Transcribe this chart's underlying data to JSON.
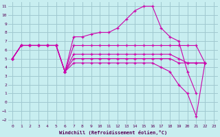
{
  "xlabel": "Windchill (Refroidissement éolien,°C)",
  "background_color": "#c8eef0",
  "grid_color": "#a0c8d0",
  "line_color": "#cc00aa",
  "xlim": [
    -0.5,
    23.5
  ],
  "ylim": [
    -2.5,
    11.5
  ],
  "xticks": [
    0,
    1,
    2,
    3,
    4,
    5,
    6,
    7,
    8,
    9,
    10,
    11,
    12,
    13,
    14,
    15,
    16,
    17,
    18,
    19,
    20,
    21,
    22,
    23
  ],
  "yticks": [
    -2,
    -1,
    0,
    1,
    2,
    3,
    4,
    5,
    6,
    7,
    8,
    9,
    10,
    11
  ],
  "s1_x": [
    0,
    1,
    2,
    3,
    4,
    5,
    6,
    7,
    8,
    9,
    10,
    11,
    12,
    13,
    14,
    15,
    16,
    17,
    18,
    19,
    20,
    21
  ],
  "s1_y": [
    5.0,
    6.5,
    6.5,
    6.5,
    6.5,
    6.5,
    3.5,
    7.5,
    7.5,
    7.8,
    8.0,
    8.0,
    8.5,
    9.5,
    10.5,
    11.0,
    11.0,
    8.5,
    7.5,
    7.0,
    3.5,
    1.0
  ],
  "s2_x": [
    0,
    1,
    2,
    3,
    4,
    5,
    6,
    7,
    8,
    9,
    10,
    11,
    12,
    13,
    14,
    15,
    16,
    17,
    18,
    19,
    20,
    21,
    22
  ],
  "s2_y": [
    5.0,
    6.5,
    6.5,
    6.5,
    6.5,
    6.5,
    3.5,
    6.5,
    6.5,
    6.5,
    6.5,
    6.5,
    6.5,
    6.5,
    6.5,
    6.5,
    6.5,
    6.5,
    6.5,
    6.5,
    6.5,
    6.5,
    4.5
  ],
  "s3_x": [
    0,
    1,
    2,
    3,
    4,
    5,
    6,
    7,
    8,
    9,
    10,
    11,
    12,
    13,
    14,
    15,
    16,
    17,
    18,
    19,
    20,
    21,
    22
  ],
  "s3_y": [
    5.0,
    6.5,
    6.5,
    6.5,
    6.5,
    6.5,
    3.5,
    5.5,
    5.5,
    5.5,
    5.5,
    5.5,
    5.5,
    5.5,
    5.5,
    5.5,
    5.5,
    5.5,
    5.5,
    5.0,
    4.5,
    4.5,
    4.5
  ],
  "s4_x": [
    0,
    1,
    2,
    3,
    4,
    5,
    6,
    7,
    8,
    9,
    10,
    11,
    12,
    13,
    14,
    15,
    16,
    17,
    18,
    19,
    20,
    21,
    22
  ],
  "s4_y": [
    5.0,
    6.5,
    6.5,
    6.5,
    6.5,
    6.5,
    3.5,
    5.0,
    5.0,
    5.0,
    5.0,
    5.0,
    5.0,
    5.0,
    5.0,
    5.0,
    5.0,
    5.0,
    5.0,
    4.5,
    4.5,
    4.5,
    4.5
  ],
  "s5_x": [
    0,
    1,
    2,
    3,
    4,
    5,
    6,
    7,
    8,
    9,
    10,
    11,
    12,
    13,
    14,
    15,
    16,
    17,
    18,
    19,
    20,
    21,
    22
  ],
  "s5_y": [
    5.0,
    6.5,
    6.5,
    6.5,
    6.5,
    6.5,
    3.5,
    4.5,
    4.5,
    4.5,
    4.5,
    4.5,
    4.5,
    4.5,
    4.5,
    4.5,
    4.5,
    4.0,
    3.5,
    2.0,
    1.0,
    -1.6,
    4.5
  ]
}
